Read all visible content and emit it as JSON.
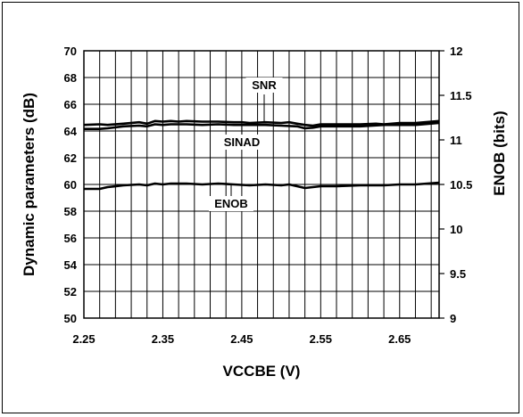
{
  "chart_data": {
    "type": "line",
    "title": "",
    "xlabel": "VCCBE (V)",
    "ylabel_left": "Dynamic parameters (dB)",
    "ylabel_right": "ENOB (bits)",
    "xlim": [
      2.25,
      2.7
    ],
    "ylim_left": [
      50,
      70
    ],
    "ylim_right": [
      9,
      12
    ],
    "x_ticks": [
      "2.25",
      "2.35",
      "2.45",
      "2.55",
      "2.65"
    ],
    "y_ticks_left": [
      "50",
      "52",
      "54",
      "56",
      "58",
      "60",
      "62",
      "64",
      "66",
      "68",
      "70"
    ],
    "y_ticks_right": [
      "9",
      "9.5",
      "10",
      "10.5",
      "11",
      "11.5",
      "12"
    ],
    "grid": true,
    "series": [
      {
        "name": "SNR",
        "axis": "left",
        "x": [
          2.25,
          2.27,
          2.28,
          2.3,
          2.32,
          2.33,
          2.34,
          2.35,
          2.36,
          2.37,
          2.38,
          2.4,
          2.42,
          2.44,
          2.45,
          2.46,
          2.48,
          2.5,
          2.51,
          2.52,
          2.53,
          2.54,
          2.55,
          2.57,
          2.6,
          2.62,
          2.63,
          2.65,
          2.67,
          2.7
        ],
        "values": [
          64.45,
          64.5,
          64.45,
          64.55,
          64.65,
          64.55,
          64.75,
          64.7,
          64.75,
          64.7,
          64.75,
          64.7,
          64.7,
          64.65,
          64.65,
          64.6,
          64.65,
          64.6,
          64.65,
          64.55,
          64.45,
          64.4,
          64.5,
          64.5,
          64.5,
          64.55,
          64.5,
          64.6,
          64.6,
          64.75
        ]
      },
      {
        "name": "SINAD",
        "axis": "left",
        "x": [
          2.25,
          2.27,
          2.28,
          2.3,
          2.32,
          2.33,
          2.34,
          2.35,
          2.36,
          2.38,
          2.4,
          2.42,
          2.44,
          2.46,
          2.48,
          2.5,
          2.52,
          2.53,
          2.54,
          2.55,
          2.57,
          2.6,
          2.63,
          2.65,
          2.67,
          2.7
        ],
        "values": [
          64.15,
          64.15,
          64.2,
          64.35,
          64.4,
          64.35,
          64.5,
          64.45,
          64.5,
          64.5,
          64.45,
          64.5,
          64.45,
          64.45,
          64.45,
          64.4,
          64.35,
          64.2,
          64.25,
          64.35,
          64.35,
          64.35,
          64.45,
          64.45,
          64.45,
          64.6
        ]
      },
      {
        "name": "ENOB",
        "axis": "right",
        "x": [
          2.25,
          2.27,
          2.28,
          2.3,
          2.32,
          2.33,
          2.34,
          2.35,
          2.36,
          2.38,
          2.4,
          2.42,
          2.44,
          2.46,
          2.48,
          2.5,
          2.51,
          2.52,
          2.53,
          2.54,
          2.55,
          2.57,
          2.6,
          2.63,
          2.65,
          2.67,
          2.7
        ],
        "values": [
          10.45,
          10.45,
          10.47,
          10.49,
          10.5,
          10.49,
          10.51,
          10.5,
          10.51,
          10.51,
          10.5,
          10.51,
          10.5,
          10.49,
          10.5,
          10.49,
          10.5,
          10.48,
          10.46,
          10.47,
          10.48,
          10.48,
          10.49,
          10.49,
          10.5,
          10.5,
          10.52
        ]
      }
    ],
    "annotations": [
      {
        "text": "SNR",
        "series": "SNR"
      },
      {
        "text": "SINAD",
        "series": "SINAD"
      },
      {
        "text": "ENOB",
        "series": "ENOB"
      }
    ]
  }
}
